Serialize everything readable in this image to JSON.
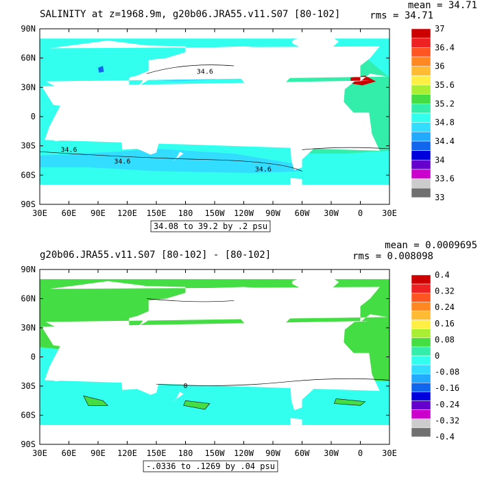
{
  "chart_data": [
    {
      "type": "heatmap",
      "title": "SALINITY at z=1968.9m, g20b06.JRA55.v11.S07 [80-102]",
      "stats": {
        "mean_label": "mean = 34.71",
        "rms_label": "rms = 34.71"
      },
      "x_tick_labels": [
        "30E",
        "60E",
        "90E",
        "120E",
        "150E",
        "180",
        "150W",
        "120W",
        "90W",
        "60W",
        "30W",
        "0",
        "30E"
      ],
      "y_tick_labels": [
        "90N",
        "60N",
        "30N",
        "0",
        "30S",
        "60S",
        "90S"
      ],
      "contour_info": "34.08 to 39.2 by .2 psu",
      "contour_labels": [
        {
          "text": "34.6",
          "lon": 200,
          "lat": 46
        },
        {
          "text": "34.6",
          "lon": 60,
          "lat": -34
        },
        {
          "text": "34.6",
          "lon": 115,
          "lat": -46
        },
        {
          "text": "34.6",
          "lon": 260,
          "lat": -54
        }
      ],
      "colorbar_labels": [
        "37",
        "36.4",
        "36",
        "35.6",
        "35.2",
        "34.8",
        "34.4",
        "34",
        "33.6",
        "33"
      ],
      "colorbar_colors": [
        "#cc0000",
        "#ee2222",
        "#ff5522",
        "#ff8822",
        "#ffbb33",
        "#ffee44",
        "#aaee33",
        "#44dd44",
        "#33eeaa",
        "#33ffee",
        "#33ddff",
        "#22aaff",
        "#1166ee",
        "#0000dd",
        "#6600cc",
        "#cc00cc",
        "#cccccc",
        "#707070"
      ]
    },
    {
      "type": "heatmap",
      "title": "g20b06.JRA55.v11.S07 [80-102] -  [80-102]",
      "stats": {
        "mean_label": "mean = 0.0009695",
        "rms_label": "rms = 0.008098"
      },
      "x_tick_labels": [
        "30E",
        "60E",
        "90E",
        "120E",
        "150E",
        "180",
        "150W",
        "120W",
        "90W",
        "60W",
        "30W",
        "0",
        "30E"
      ],
      "y_tick_labels": [
        "90N",
        "60N",
        "30N",
        "0",
        "30S",
        "60S",
        "90S"
      ],
      "contour_info": "-.0336 to .1269 by .04 psu",
      "contour_labels": [
        {
          "text": "0",
          "lon": 180,
          "lat": -30
        }
      ],
      "colorbar_labels": [
        "0.4",
        "0.32",
        "0.24",
        "0.16",
        "0.08",
        "0",
        "-0.08",
        "-0.16",
        "-0.24",
        "-0.32",
        "-0.4"
      ],
      "colorbar_colors": [
        "#cc0000",
        "#ee2222",
        "#ff5522",
        "#ff8822",
        "#ffbb33",
        "#ffee44",
        "#aaee33",
        "#44dd44",
        "#33eeaa",
        "#33ffee",
        "#33ddff",
        "#22aaff",
        "#1166ee",
        "#0000dd",
        "#6600cc",
        "#cc00cc",
        "#cccccc",
        "#707070"
      ]
    }
  ]
}
